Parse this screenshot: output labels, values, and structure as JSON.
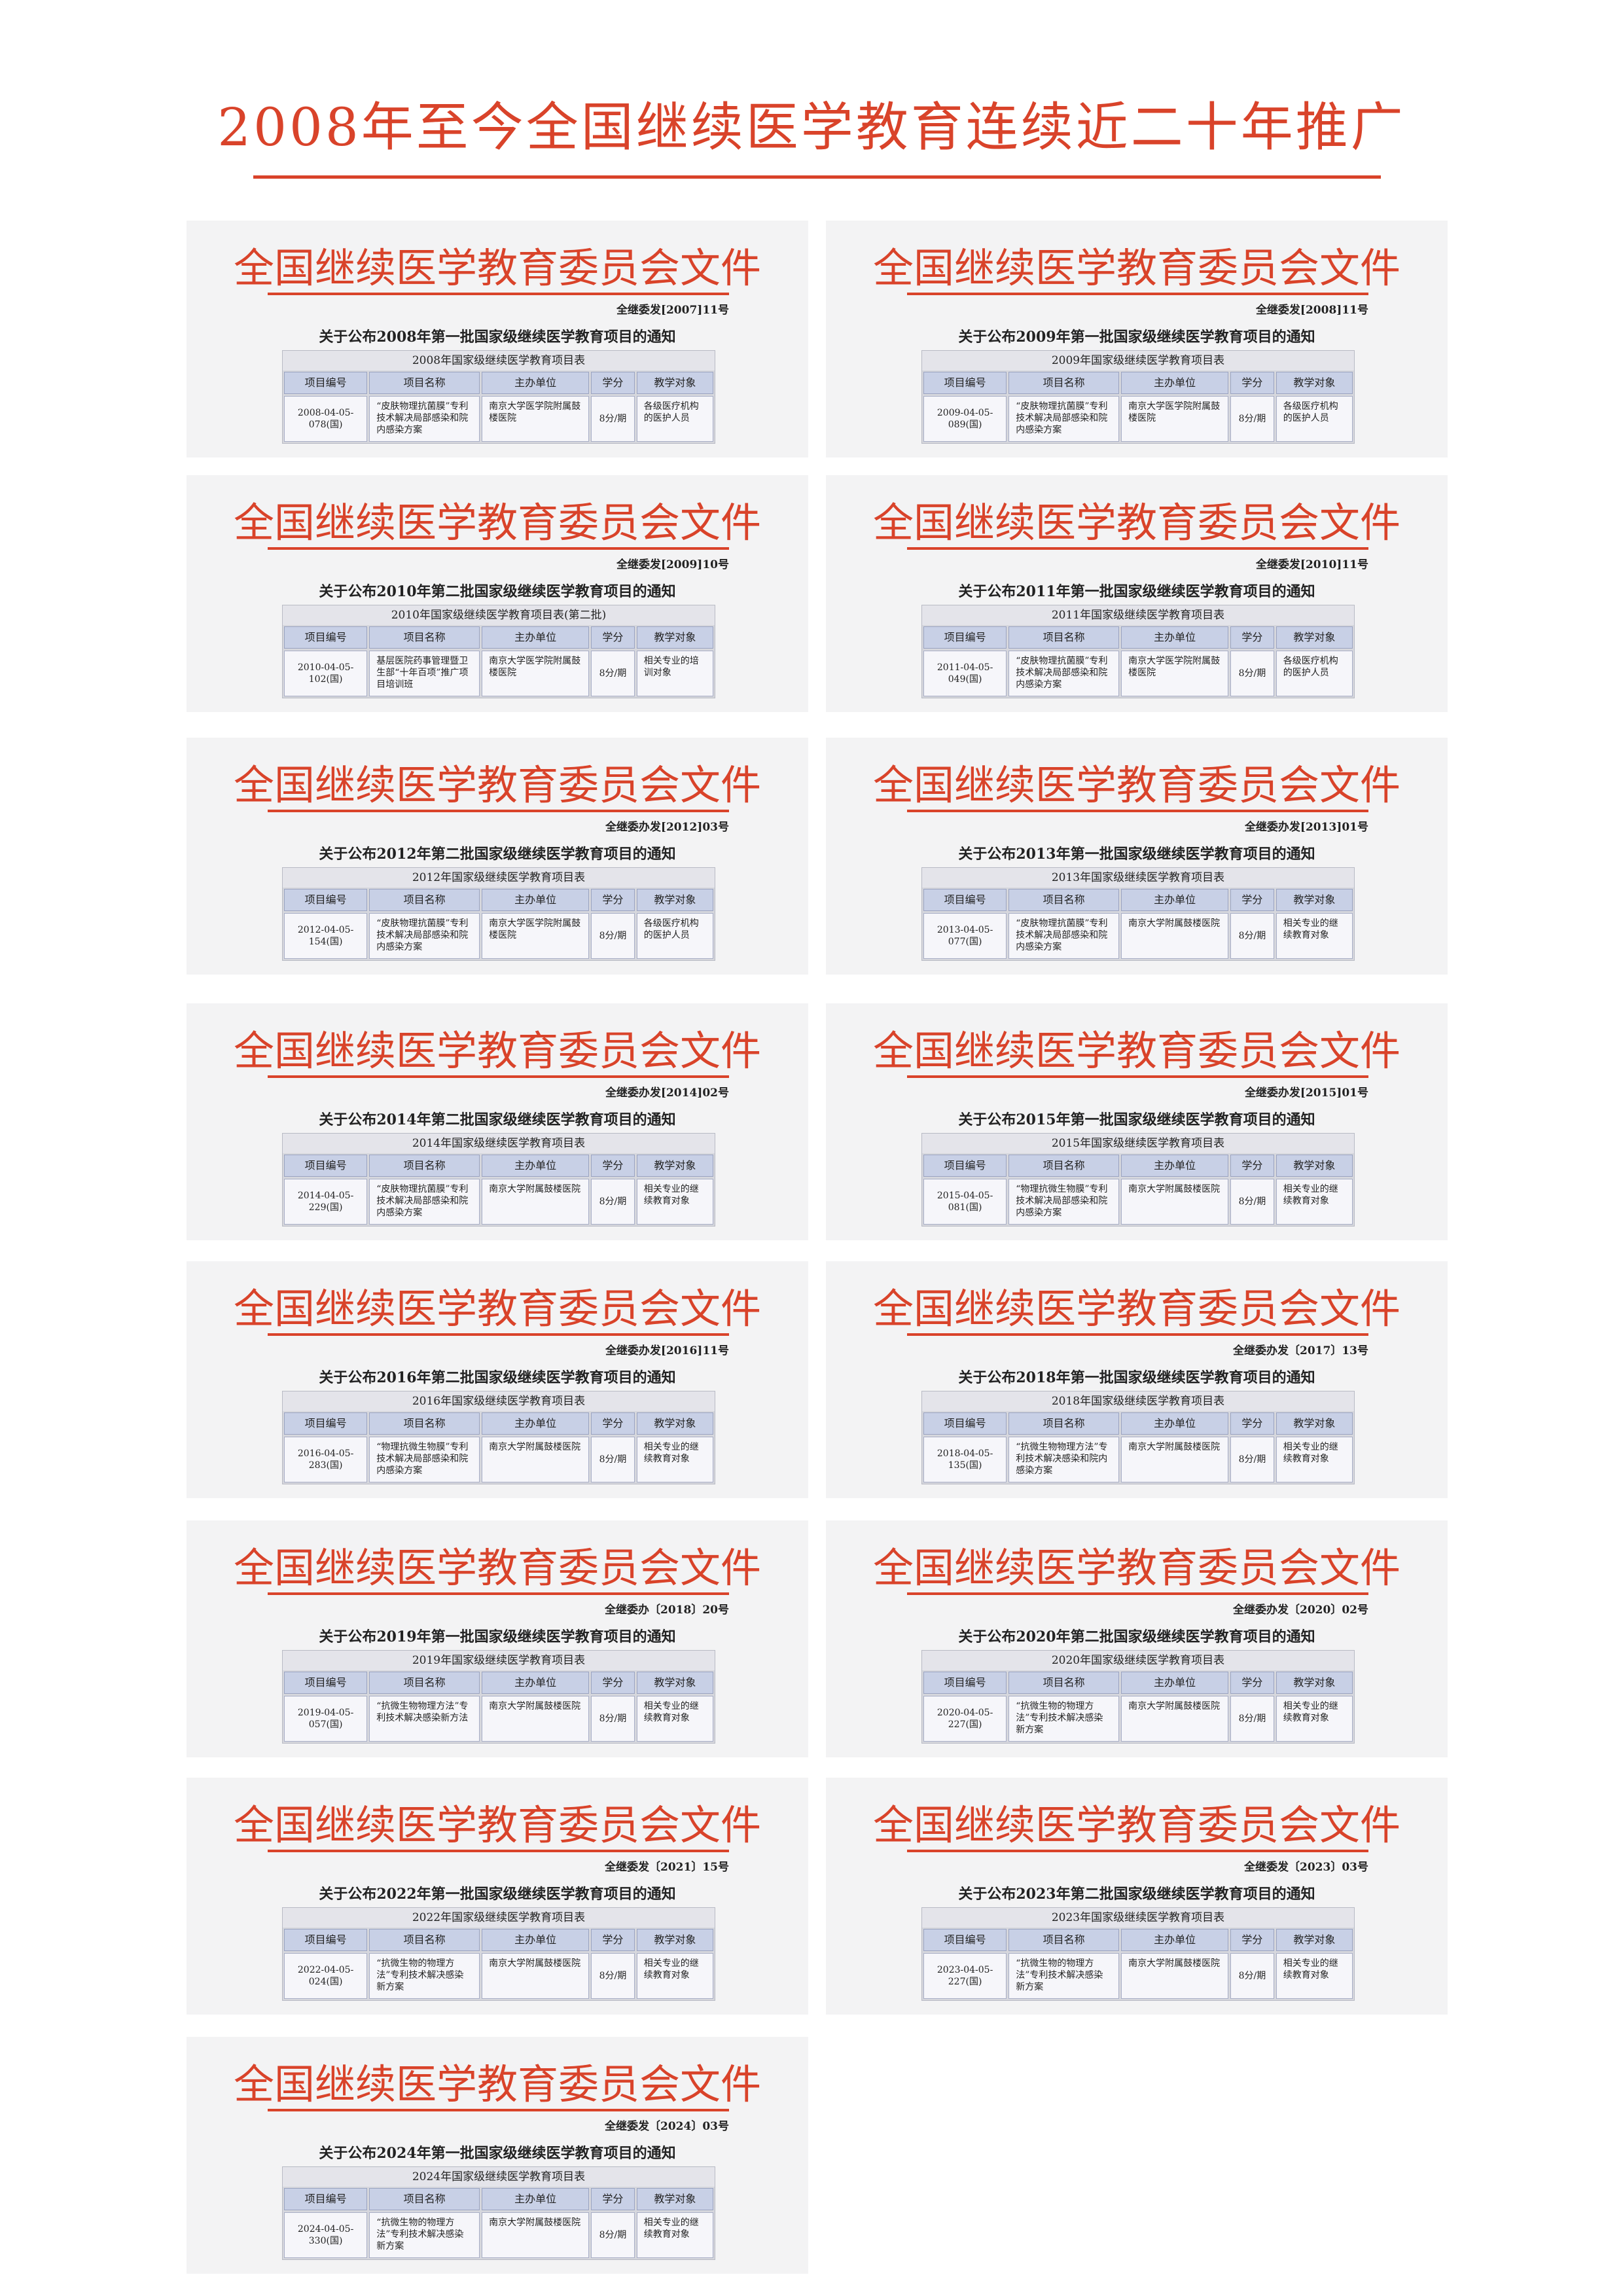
{
  "page_title": "2008年至今全国继续医学教育连续近二十年推广",
  "cards": [
    {
      "header": "全国继续医学教育委员会文件",
      "doc_no": "全继委发[2007]11号",
      "notice": "关于公布2008年第一批国家级继续医学教育项目的通知",
      "table_title": "2008年国家级继续医学教育项目表",
      "columns": [
        "项目编号",
        "项目名称",
        "主办单位",
        "学分",
        "教学对象"
      ],
      "row": [
        "2008-04-05-078(国)",
        "“皮肤物理抗菌膜”专利技术解决局部感染和院内感染方案",
        "南京大学医学院附属鼓楼医院",
        "8分/期",
        "各级医疗机构的医护人员"
      ]
    },
    {
      "header": "全国继续医学教育委员会文件",
      "doc_no": "全继委发[2008]11号",
      "notice": "关于公布2009年第一批国家级继续医学教育项目的通知",
      "table_title": "2009年国家级继续医学教育项目表",
      "columns": [
        "项目编号",
        "项目名称",
        "主办单位",
        "学分",
        "教学对象"
      ],
      "row": [
        "2009-04-05-089(国)",
        "“皮肤物理抗菌膜”专利技术解决局部感染和院内感染方案",
        "南京大学医学院附属鼓楼医院",
        "8分/期",
        "各级医疗机构的医护人员"
      ]
    },
    {
      "header": "全国继续医学教育委员会文件",
      "doc_no": "全继委发[2009]10号",
      "notice": "关于公布2010年第二批国家级继续医学教育项目的通知",
      "table_title": "2010年国家级继续医学教育项目表(第二批)",
      "columns": [
        "项目编号",
        "项目名称",
        "主办单位",
        "学分",
        "教学对象"
      ],
      "row": [
        "2010-04-05-102(国)",
        "基层医院药事管理暨卫生部“十年百项”推广项目培训班",
        "南京大学医学院附属鼓楼医院",
        "8分/期",
        "相关专业的培训对象"
      ]
    },
    {
      "header": "全国继续医学教育委员会文件",
      "doc_no": "全继委发[2010]11号",
      "notice": "关于公布2011年第一批国家级继续医学教育项目的通知",
      "table_title": "2011年国家级继续医学教育项目表",
      "columns": [
        "项目编号",
        "项目名称",
        "主办单位",
        "学分",
        "教学对象"
      ],
      "row": [
        "2011-04-05-049(国)",
        "“皮肤物理抗菌膜”专利技术解决局部感染和院内感染方案",
        "南京大学医学院附属鼓楼医院",
        "8分/期",
        "各级医疗机构的医护人员"
      ]
    },
    {
      "header": "全国继续医学教育委员会文件",
      "doc_no": "全继委办发[2012]03号",
      "notice": "关于公布2012年第二批国家级继续医学教育项目的通知",
      "table_title": "2012年国家级继续医学教育项目表",
      "columns": [
        "项目编号",
        "项目名称",
        "主办单位",
        "学分",
        "教学对象"
      ],
      "row": [
        "2012-04-05-154(国)",
        "“皮肤物理抗菌膜”专利技术解决局部感染和院内感染方案",
        "南京大学医学院附属鼓楼医院",
        "8分/期",
        "各级医疗机构的医护人员"
      ]
    },
    {
      "header": "全国继续医学教育委员会文件",
      "doc_no": "全继委办发[2013]01号",
      "notice": "关于公布2013年第一批国家级继续医学教育项目的通知",
      "table_title": "2013年国家级继续医学教育项目表",
      "columns": [
        "项目编号",
        "项目名称",
        "主办单位",
        "学分",
        "教学对象"
      ],
      "row": [
        "2013-04-05-077(国)",
        "“皮肤物理抗菌膜”专利技术解决局部感染和院内感染方案",
        "南京大学附属鼓楼医院",
        "8分/期",
        "相关专业的继续教育对象"
      ]
    },
    {
      "header": "全国继续医学教育委员会文件",
      "doc_no": "全继委办发[2014]02号",
      "notice": "关于公布2014年第二批国家级继续医学教育项目的通知",
      "table_title": "2014年国家级继续医学教育项目表",
      "columns": [
        "项目编号",
        "项目名称",
        "主办单位",
        "学分",
        "教学对象"
      ],
      "row": [
        "2014-04-05-229(国)",
        "“皮肤物理抗菌膜”专利技术解决局部感染和院内感染方案",
        "南京大学附属鼓楼医院",
        "8分/期",
        "相关专业的继续教育对象"
      ]
    },
    {
      "header": "全国继续医学教育委员会文件",
      "doc_no": "全继委办发[2015]01号",
      "notice": "关于公布2015年第一批国家级继续医学教育项目的通知",
      "table_title": "2015年国家级继续医学教育项目表",
      "columns": [
        "项目编号",
        "项目名称",
        "主办单位",
        "学分",
        "教学对象"
      ],
      "row": [
        "2015-04-05-081(国)",
        "“物理抗微生物膜”专利技术解决局部感染和院内感染方案",
        "南京大学附属鼓楼医院",
        "8分/期",
        "相关专业的继续教育对象"
      ]
    },
    {
      "header": "全国继续医学教育委员会文件",
      "doc_no": "全继委办发[2016]11号",
      "notice": "关于公布2016年第二批国家级继续医学教育项目的通知",
      "table_title": "2016年国家级继续医学教育项目表",
      "columns": [
        "项目编号",
        "项目名称",
        "主办单位",
        "学分",
        "教学对象"
      ],
      "row": [
        "2016-04-05-283(国)",
        "“物理抗微生物膜”专利技术解决局部感染和院内感染方案",
        "南京大学附属鼓楼医院",
        "8分/期",
        "相关专业的继续教育对象"
      ]
    },
    {
      "header": "全国继续医学教育委员会文件",
      "doc_no": "全继委办发〔2017〕13号",
      "notice": "关于公布2018年第一批国家级继续医学教育项目的通知",
      "table_title": "2018年国家级继续医学教育项目表",
      "columns": [
        "项目编号",
        "项目名称",
        "主办单位",
        "学分",
        "教学对象"
      ],
      "row": [
        "2018-04-05-135(国)",
        "“抗微生物物理方法”专利技术解决感染和院内感染方案",
        "南京大学附属鼓楼医院",
        "8分/期",
        "相关专业的继续教育对象"
      ]
    },
    {
      "header": "全国继续医学教育委员会文件",
      "doc_no": "全继委办〔2018〕20号",
      "notice": "关于公布2019年第一批国家级继续医学教育项目的通知",
      "table_title": "2019年国家级继续医学教育项目表",
      "columns": [
        "项目编号",
        "项目名称",
        "主办单位",
        "学分",
        "教学对象"
      ],
      "row": [
        "2019-04-05-057(国)",
        "“抗微生物物理方法”专利技术解决感染新方法",
        "南京大学附属鼓楼医院",
        "8分/期",
        "相关专业的继续教育对象"
      ]
    },
    {
      "header": "全国继续医学教育委员会文件",
      "doc_no": "全继委办发〔2020〕02号",
      "notice": "关于公布2020年第二批国家级继续医学教育项目的通知",
      "table_title": "2020年国家级继续医学教育项目表",
      "columns": [
        "项目编号",
        "项目名称",
        "主办单位",
        "学分",
        "教学对象"
      ],
      "row": [
        "2020-04-05-227(国)",
        "“抗微生物的物理方法”专利技术解决感染新方案",
        "南京大学附属鼓楼医院",
        "8分/期",
        "相关专业的继续教育对象"
      ]
    },
    {
      "header": "全国继续医学教育委员会文件",
      "doc_no": "全继委发〔2021〕15号",
      "notice": "关于公布2022年第一批国家级继续医学教育项目的通知",
      "table_title": "2022年国家级继续医学教育项目表",
      "columns": [
        "项目编号",
        "项目名称",
        "主办单位",
        "学分",
        "教学对象"
      ],
      "row": [
        "2022-04-05-024(国)",
        "“抗微生物的物理方法”专利技术解决感染新方案",
        "南京大学附属鼓楼医院",
        "8分/期",
        "相关专业的继续教育对象"
      ]
    },
    {
      "header": "全国继续医学教育委员会文件",
      "doc_no": "全继委发〔2023〕03号",
      "notice": "关于公布2023年第二批国家级继续医学教育项目的通知",
      "table_title": "2023年国家级继续医学教育项目表",
      "columns": [
        "项目编号",
        "项目名称",
        "主办单位",
        "学分",
        "教学对象"
      ],
      "row": [
        "2023-04-05-227(国)",
        "“抗微生物的物理方法”专利技术解决感染新方案",
        "南京大学附属鼓楼医院",
        "8分/期",
        "相关专业的继续教育对象"
      ]
    },
    {
      "header": "全国继续医学教育委员会文件",
      "doc_no": "全继委发〔2024〕03号",
      "notice": "关于公布2024年第一批国家级继续医学教育项目的通知",
      "table_title": "2024年国家级继续医学教育项目表",
      "columns": [
        "项目编号",
        "项目名称",
        "主办单位",
        "学分",
        "教学对象"
      ],
      "row": [
        "2024-04-05-330(国)",
        "“抗微生物的物理方法”专利技术解决感染新方案",
        "南京大学附属鼓楼医院",
        "8分/期",
        "相关专业的继续教育对象"
      ]
    }
  ]
}
